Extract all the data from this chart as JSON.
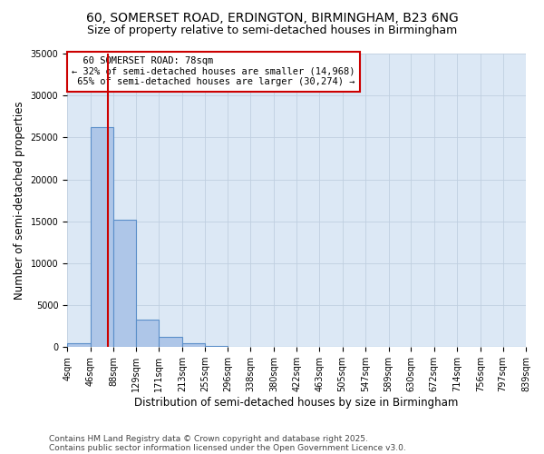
{
  "title1": "60, SOMERSET ROAD, ERDINGTON, BIRMINGHAM, B23 6NG",
  "title2": "Size of property relative to semi-detached houses in Birmingham",
  "xlabel": "Distribution of semi-detached houses by size in Birmingham",
  "ylabel": "Number of semi-detached properties",
  "property_size": 78,
  "property_label": "60 SOMERSET ROAD: 78sqm",
  "pct_smaller": 32,
  "pct_larger": 65,
  "count_smaller": 14968,
  "count_larger": 30274,
  "bin_edges": [
    4,
    46,
    88,
    129,
    171,
    213,
    255,
    296,
    338,
    380,
    422,
    463,
    505,
    547,
    589,
    630,
    672,
    714,
    756,
    797,
    839
  ],
  "bar_values": [
    500,
    26200,
    15200,
    3300,
    1200,
    500,
    100,
    50,
    30,
    20,
    15,
    10,
    8,
    5,
    5,
    3,
    3,
    2,
    2,
    2
  ],
  "bar_color": "#aec6e8",
  "bar_edge_color": "#5b8fc9",
  "vline_color": "#cc0000",
  "vline_x": 78,
  "annotation_box_color": "#cc0000",
  "bg_color": "#dce8f5",
  "ylim": [
    0,
    35000
  ],
  "yticks": [
    0,
    5000,
    10000,
    15000,
    20000,
    25000,
    30000,
    35000
  ],
  "footnote1": "Contains HM Land Registry data © Crown copyright and database right 2025.",
  "footnote2": "Contains public sector information licensed under the Open Government Licence v3.0.",
  "title1_fontsize": 10,
  "title2_fontsize": 9,
  "axis_label_fontsize": 8.5,
  "tick_fontsize": 7,
  "annotation_fontsize": 7.5,
  "footnote_fontsize": 6.5
}
